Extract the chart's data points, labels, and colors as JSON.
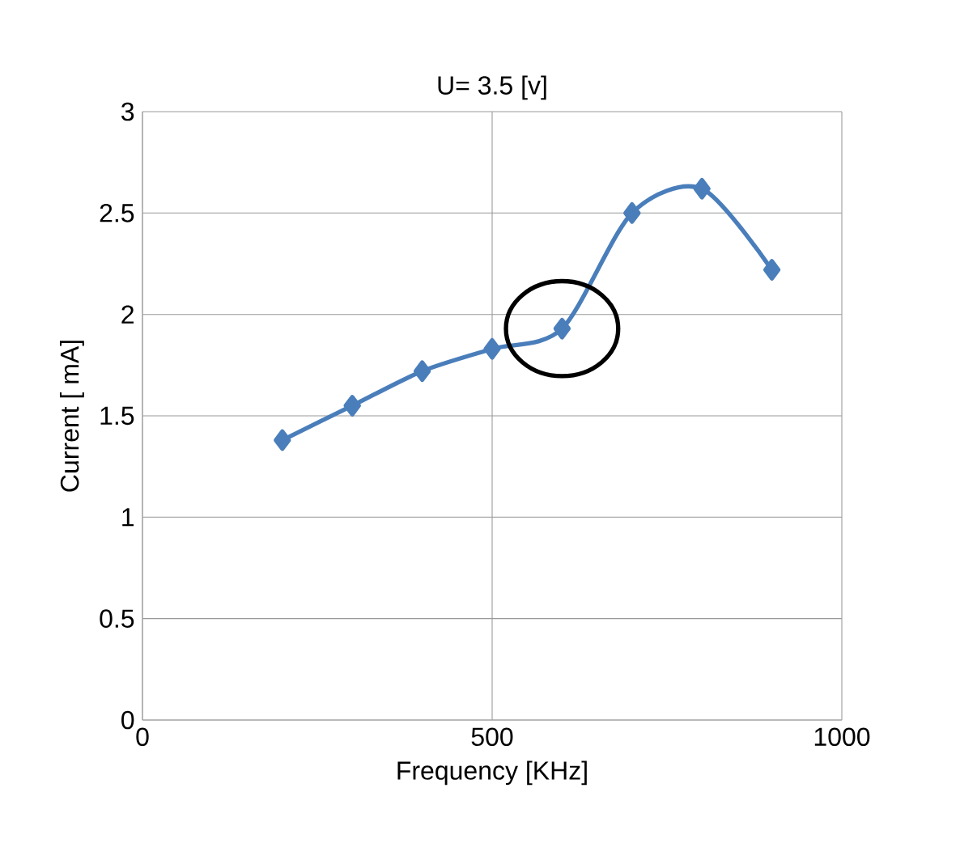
{
  "chart_data": {
    "type": "line",
    "title": "U= 3.5 [v]",
    "xlabel": "Frequency [KHz]",
    "ylabel": "Current [ mA]",
    "x": [
      200,
      300,
      400,
      500,
      600,
      700,
      800,
      900
    ],
    "series": [
      {
        "color": "#4a7ebb",
        "values": [
          1.38,
          1.55,
          1.72,
          1.83,
          1.93,
          2.5,
          2.62,
          2.22
        ]
      }
    ],
    "xlim": [
      0,
      1000
    ],
    "xticks": [
      0,
      500,
      1000
    ],
    "ylim": [
      0,
      3
    ],
    "yticks": [
      0,
      0.5,
      1,
      1.5,
      2,
      2.5,
      3
    ],
    "grid": true,
    "marker": "diamond",
    "line_style": "solid"
  }
}
